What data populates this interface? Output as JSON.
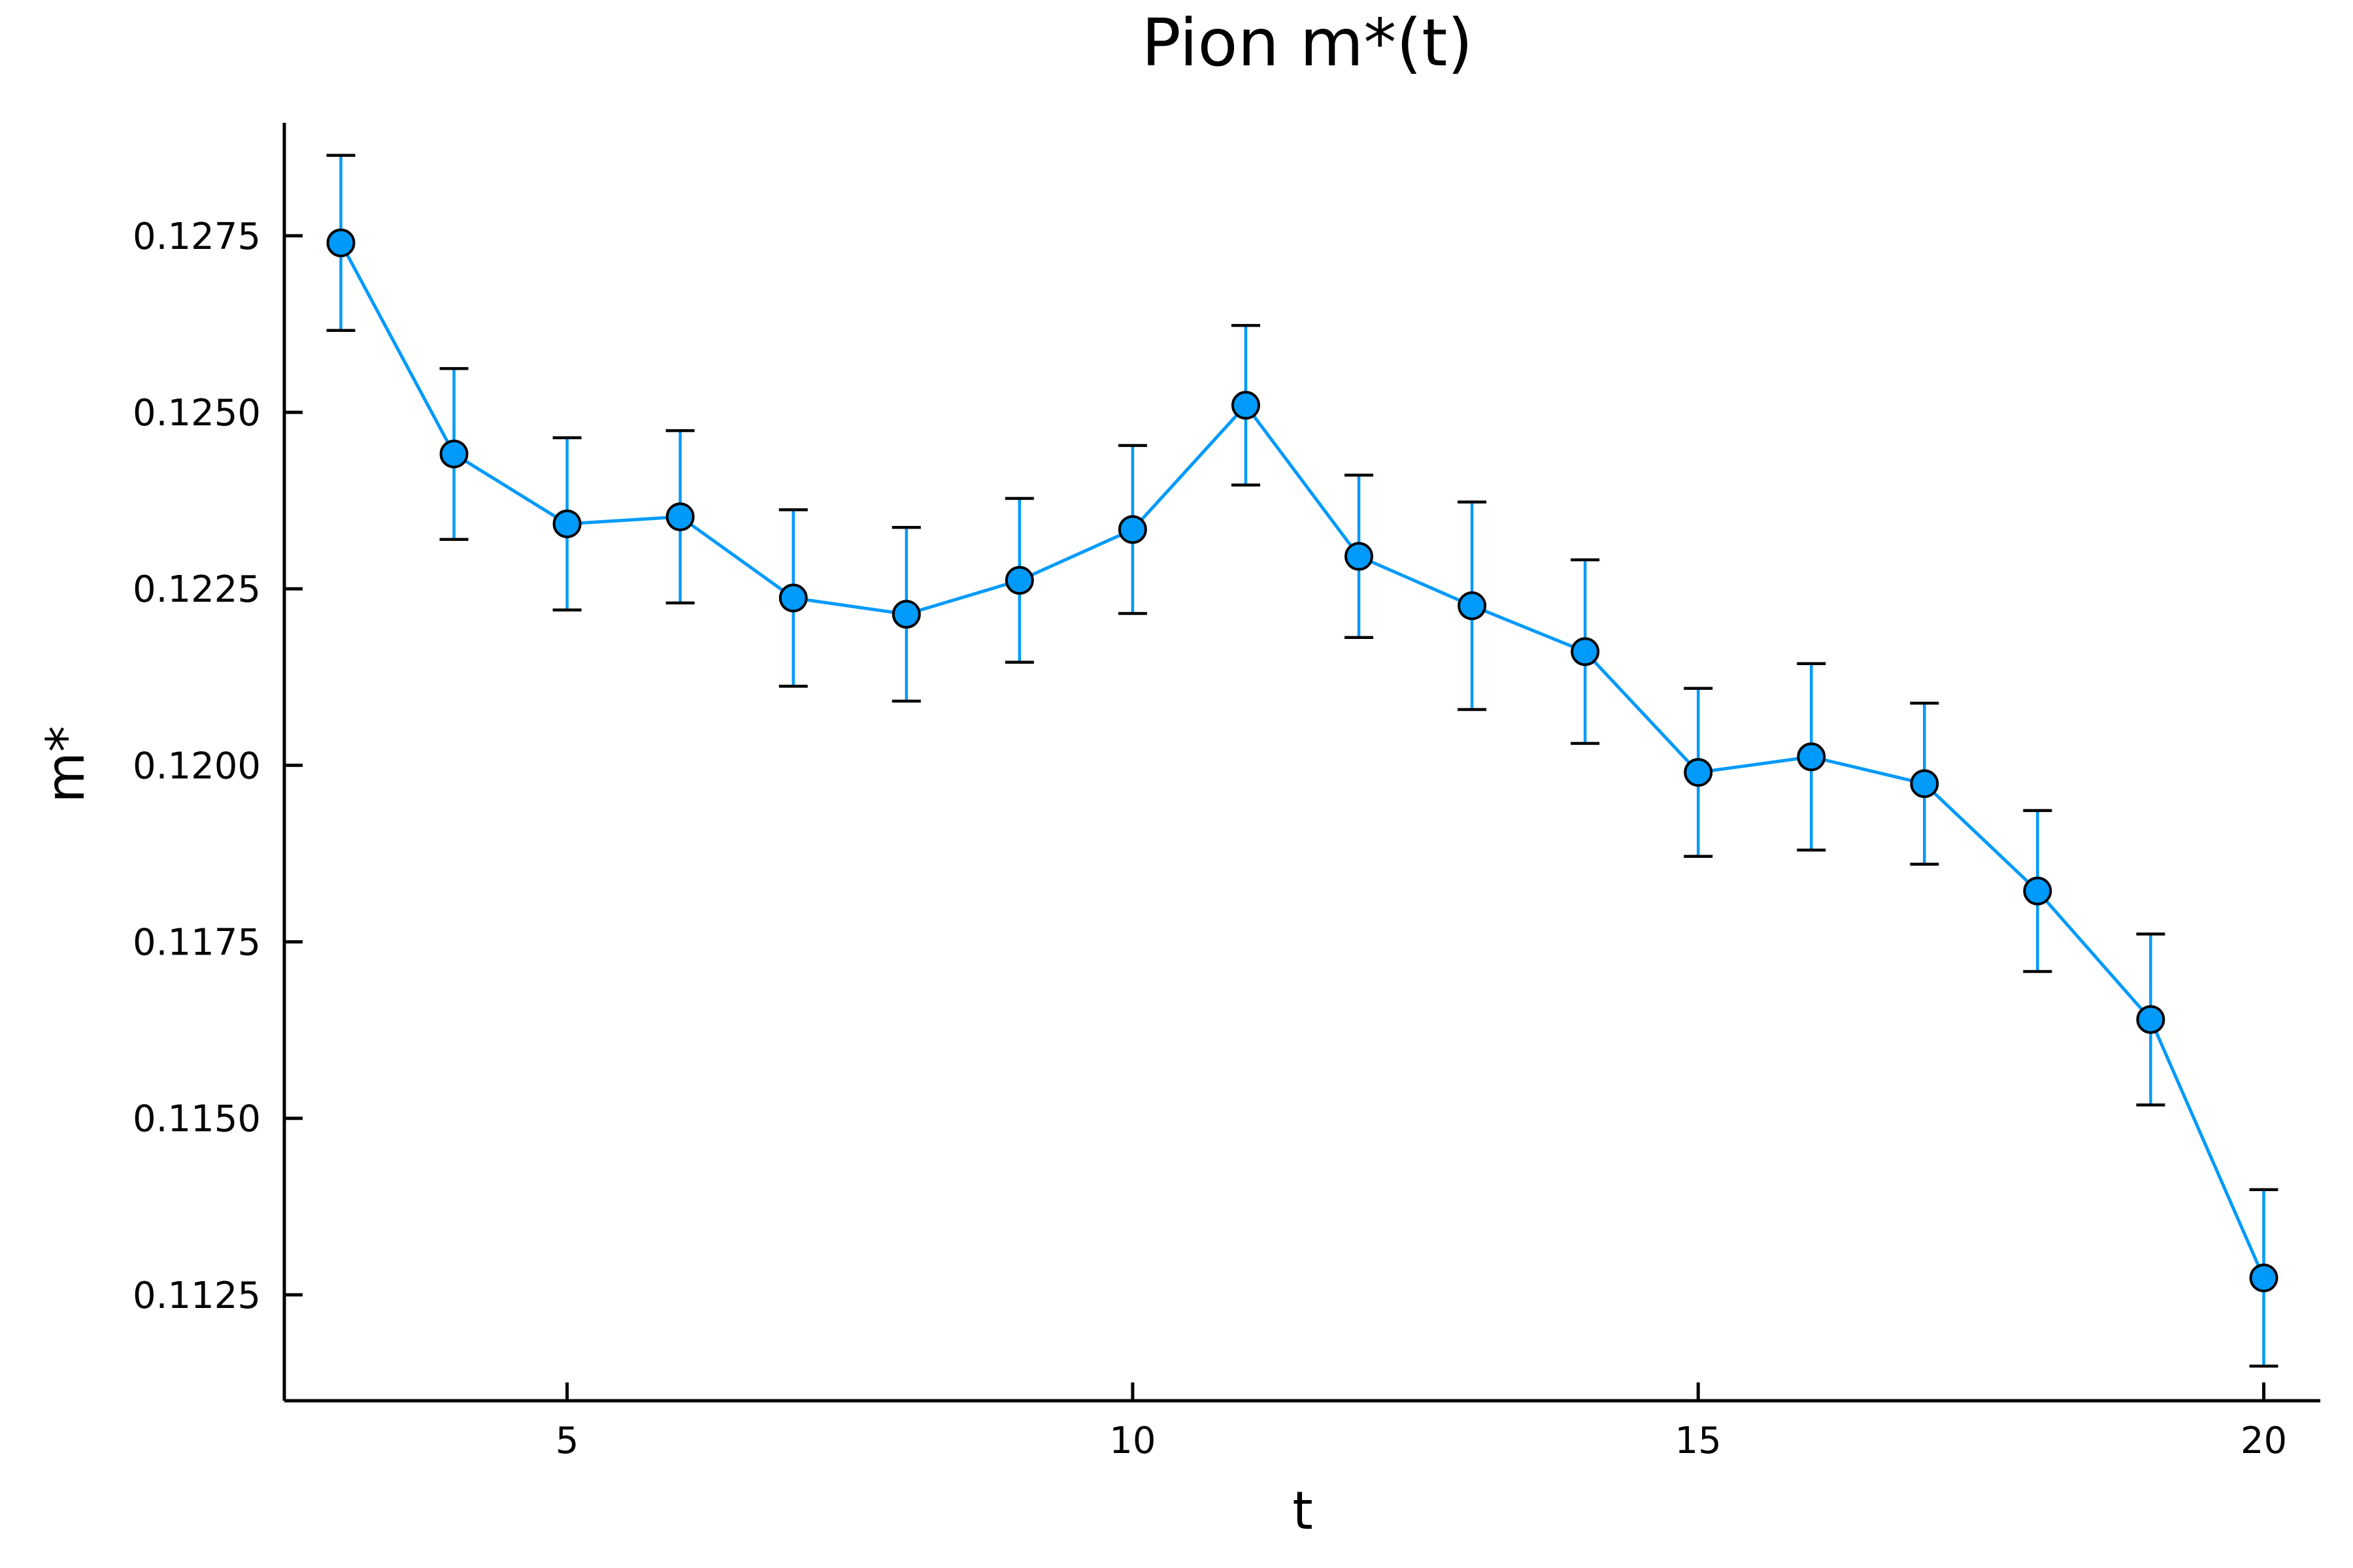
{
  "chart_data": {
    "type": "scatter",
    "title": "Pion m*(t)",
    "xlabel": "t",
    "ylabel": "m*",
    "xlim": [
      2.5,
      20.5
    ],
    "ylim": [
      0.111,
      0.1291
    ],
    "xticks": [
      5,
      10,
      15,
      20
    ],
    "yticks": [
      0.1125,
      0.115,
      0.1175,
      0.12,
      0.1225,
      0.125,
      0.1275
    ],
    "ytick_labels": [
      "0.1125",
      "0.1150",
      "0.1175",
      "0.1200",
      "0.1225",
      "0.1250",
      "0.1275"
    ],
    "grid": false,
    "legend": "none",
    "colors": {
      "series": "#009AFA",
      "axes": "#000000"
    },
    "series": [
      {
        "x": [
          3,
          4,
          5,
          6,
          7,
          8,
          9,
          10,
          11,
          12,
          13,
          14,
          15,
          16,
          17,
          18,
          19,
          20
        ],
        "y": [
          0.1274,
          0.12441,
          0.12342,
          0.12352,
          0.12237,
          0.12214,
          0.12262,
          0.12334,
          0.1251,
          0.12296,
          0.12226,
          0.12161,
          0.1199,
          0.12012,
          0.11974,
          0.11822,
          0.1164,
          0.11274
        ],
        "err": [
          0.00124,
          0.00121,
          0.00122,
          0.00122,
          0.00125,
          0.00123,
          0.00116,
          0.00119,
          0.00113,
          0.00115,
          0.00147,
          0.0013,
          0.00119,
          0.00132,
          0.00114,
          0.00114,
          0.00121,
          0.00125
        ]
      }
    ]
  }
}
